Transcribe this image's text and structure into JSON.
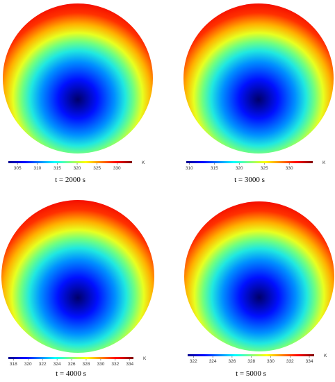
{
  "chart_data": [
    {
      "type": "colormap",
      "caption": "t = 2000 s",
      "unit": "K",
      "clim": [
        302.7,
        333.8
      ],
      "ticks": [
        305,
        310,
        315,
        320,
        325,
        330
      ]
    },
    {
      "type": "colormap",
      "caption": "t = 3000 s",
      "unit": "K",
      "clim": [
        309.4,
        334.7
      ],
      "ticks": [
        310,
        315,
        320,
        325,
        330
      ]
    },
    {
      "type": "colormap",
      "caption": "t = 4000 s",
      "unit": "K",
      "clim": [
        317.3,
        334.5
      ],
      "ticks": [
        318,
        320,
        322,
        324,
        326,
        328,
        330,
        332,
        334
      ]
    },
    {
      "type": "colormap",
      "caption": "t = 5000 s",
      "unit": "K",
      "clim": [
        321.4,
        334.5
      ],
      "ticks": [
        322,
        324,
        326,
        328,
        330,
        332,
        334
      ]
    }
  ]
}
